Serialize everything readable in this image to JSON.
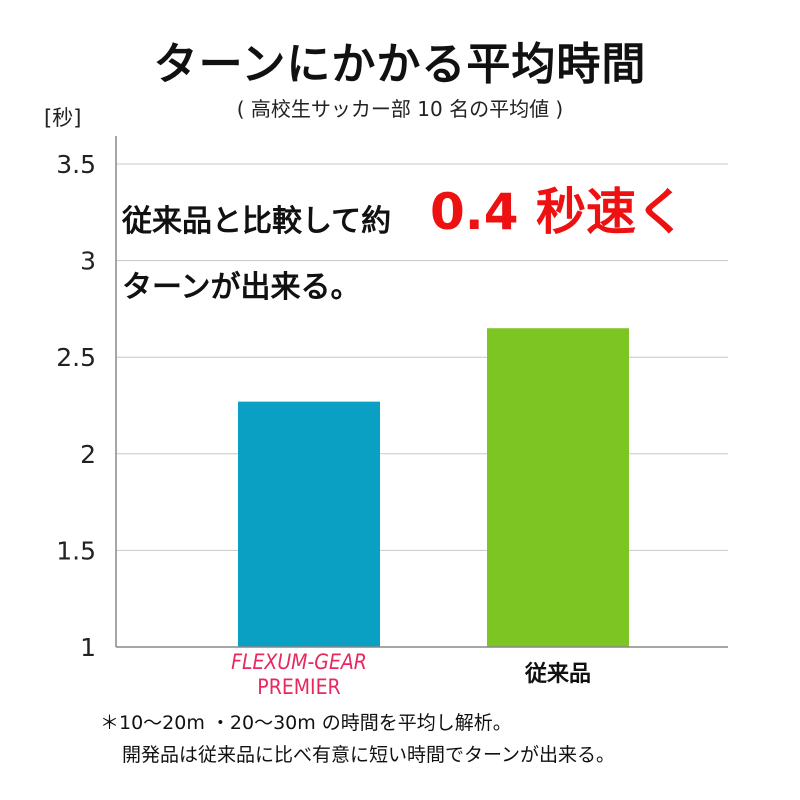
{
  "title": "ターンにかかる平均時間",
  "subtitle": "( 高校生サッカー部 10 名の平均値 )",
  "unit_label": "[秒]",
  "callout": {
    "line1": "従来品と比較して約",
    "highlight": "0.4 秒速く",
    "line2": "ターンが出来る。"
  },
  "category_labels": {
    "brand_line1": "FLEXUM-GEAR",
    "brand_line2": "PREMIER",
    "conventional": "従来品"
  },
  "notes": {
    "line1": "＊10〜20m ・20〜30m の時間を平均し解析。",
    "line2": "開発品は従来品に比べ有意に短い時間でターンが出来る。"
  },
  "chart_data": {
    "type": "bar",
    "title": "ターンにかかる平均時間",
    "subtitle": "( 高校生サッカー部 10 名の平均値 )",
    "ylabel": "[秒]",
    "categories": [
      "FLEXUM-GEAR PREMIER",
      "従来品"
    ],
    "values": [
      2.27,
      2.65
    ],
    "colors": [
      "#0aa0c4",
      "#7dc523"
    ],
    "ylim": [
      1,
      3.5
    ],
    "yticks": [
      1,
      1.5,
      2,
      2.5,
      3,
      3.5
    ],
    "ytick_labels": [
      "1",
      "1.5",
      "2",
      "2.5",
      "3",
      "3.5"
    ],
    "grid": true
  }
}
